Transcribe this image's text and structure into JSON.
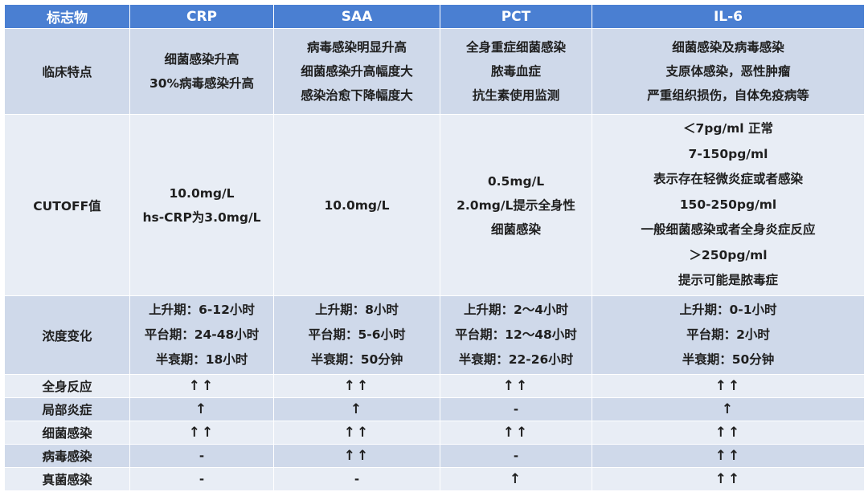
{
  "headers": [
    "标志物",
    "CRP",
    "SAA",
    "PCT",
    "IL-6"
  ],
  "clinical": {
    "label": "临床特点",
    "crp": [
      "细菌感染升高",
      "30%病毒感染升高"
    ],
    "saa": [
      "病毒感染明显升高",
      "细菌感染升高幅度大",
      "感染治愈下降幅度大"
    ],
    "pct": [
      "全身重症细菌感染",
      "脓毒血症",
      "抗生素使用监测"
    ],
    "il6": [
      "细菌感染及病毒感染",
      "支原体感染，恶性肿瘤",
      "严重组织损伤，自体免疫病等"
    ]
  },
  "cutoff": {
    "label": "CUTOFF值",
    "crp": [
      "10.0mg/L",
      "hs-CRP为3.0mg/L"
    ],
    "saa": [
      "10.0mg/L"
    ],
    "pct": [
      "0.5mg/L",
      "2.0mg/L提示全身性",
      "细菌感染"
    ],
    "il6": [
      "＜7pg/ml 正常",
      "7-150pg/ml",
      "表示存在轻微炎症或者感染",
      "150-250pg/ml",
      "一般细菌感染或者全身炎症反应",
      "＞250pg/ml",
      "提示可能是脓毒症"
    ]
  },
  "concentration": {
    "label": "浓度变化",
    "crp": [
      "上升期：6-12小时",
      "平台期：24-48小时",
      "半衰期：18小时"
    ],
    "saa": [
      "上升期：8小时",
      "平台期：5-6小时",
      "半衰期：50分钟"
    ],
    "pct": [
      "上升期：2～4小时",
      "平台期：12～48小时",
      "半衰期：22-26小时"
    ],
    "il6": [
      "上升期：0-1小时",
      "平台期：2小时",
      "半衰期：50分钟"
    ]
  },
  "response_rows": [
    {
      "label": "全身反应",
      "crp": "↑↑",
      "saa": "↑↑",
      "pct": "↑↑",
      "il6": "↑↑"
    },
    {
      "label": "局部炎症",
      "crp": "↑",
      "saa": "↑",
      "pct": "-",
      "il6": "↑"
    },
    {
      "label": "细菌感染",
      "crp": "↑↑",
      "saa": "↑↑",
      "pct": "↑↑",
      "il6": "↑↑"
    },
    {
      "label": "病毒感染",
      "crp": "-",
      "saa": "↑↑",
      "pct": "-",
      "il6": "↑↑"
    },
    {
      "label": "真菌感染",
      "crp": "-",
      "saa": "-",
      "pct": "↑",
      "il6": "↑↑"
    }
  ],
  "colors": {
    "header_bg": "#4a7fd2",
    "row_dark": "#cfd9ea",
    "row_light": "#e8edf5"
  }
}
